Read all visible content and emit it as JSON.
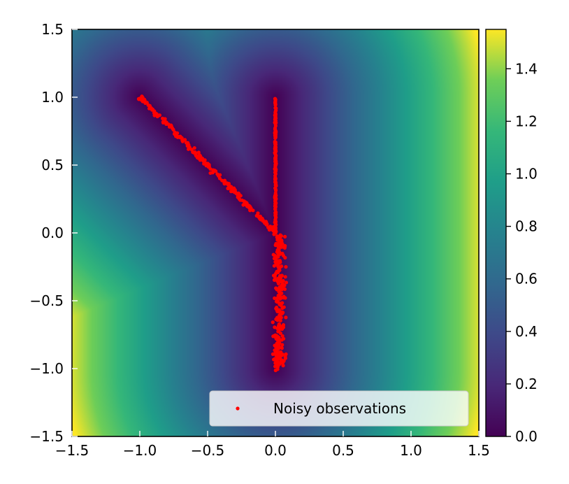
{
  "chart_data": {
    "type": "scatter",
    "title": "",
    "xlabel": "",
    "ylabel": "",
    "xlim": [
      -1.5,
      1.5
    ],
    "ylim": [
      -1.5,
      1.5
    ],
    "x_ticks": [
      "−1.5",
      "−1.0",
      "−0.5",
      "0.0",
      "0.5",
      "1.0",
      "1.5"
    ],
    "y_ticks": [
      "−1.5",
      "−1.0",
      "−0.5",
      "0.0",
      "0.5",
      "1.0",
      "1.5"
    ],
    "grid": false,
    "background": {
      "type": "heatmap",
      "colormap": "viridis",
      "description_of_field": "distance to the Y-shaped set of observations",
      "colorbar": {
        "range": [
          0.0,
          1.55
        ],
        "ticks": [
          "0.0",
          "0.2",
          "0.4",
          "0.6",
          "0.8",
          "1.0",
          "1.2",
          "1.4"
        ]
      }
    },
    "series": [
      {
        "name": "Noisy observations",
        "color": "#ff0000",
        "segments": [
          {
            "label": "diagonal arm",
            "from": [
              -1.0,
              1.0
            ],
            "to": [
              0.0,
              0.0
            ],
            "noise": 0.015
          },
          {
            "label": "vertical arm",
            "from": [
              0.0,
              1.0
            ],
            "to": [
              0.0,
              0.0
            ],
            "noise": 0.004
          },
          {
            "label": "noisy stem",
            "from": [
              0.0,
              0.0
            ],
            "to": [
              0.0,
              -1.0
            ],
            "x_spread": [
              -0.1,
              0.16
            ]
          }
        ]
      }
    ],
    "legend": {
      "position": "lower-right",
      "label": "Noisy observations"
    }
  }
}
